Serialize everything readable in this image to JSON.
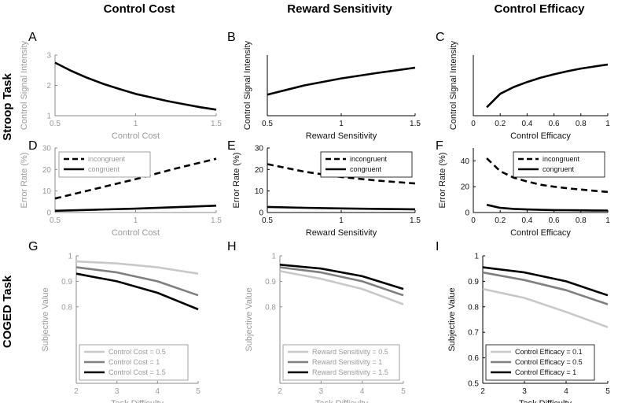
{
  "column_titles": [
    "Control Cost",
    "Reward Sensitivity",
    "Control Efficacy"
  ],
  "row_titles": [
    "Stroop Task",
    "COGED Task"
  ],
  "chart_data": [
    {
      "panel": "A",
      "type": "line",
      "style": "gray",
      "xlabel": "Control Cost",
      "ylabel": "Control Signal Intensity",
      "xlim": [
        0.5,
        1.5
      ],
      "ylim": [
        1,
        3
      ],
      "xticks": [
        "0.5",
        "1",
        "1.5"
      ],
      "xtick_values": [
        0.5,
        1,
        1.5
      ],
      "yticks": [
        "1",
        "2",
        "3"
      ],
      "ytick_values": [
        1,
        2,
        3
      ],
      "series": [
        {
          "name": "",
          "color": "#000000",
          "dash": false,
          "x": [
            0.5,
            0.6,
            0.7,
            0.8,
            0.9,
            1.0,
            1.1,
            1.2,
            1.3,
            1.4,
            1.5
          ],
          "y": [
            2.75,
            2.48,
            2.25,
            2.05,
            1.88,
            1.72,
            1.6,
            1.48,
            1.38,
            1.28,
            1.2
          ]
        }
      ]
    },
    {
      "panel": "B",
      "type": "line",
      "style": "dark",
      "xlabel": "Reward Sensitivity",
      "ylabel": "Control Signal Intensity",
      "xlim": [
        0.5,
        1.5
      ],
      "ylim": [
        0.9,
        2.2
      ],
      "xticks": [
        "0.5",
        "1",
        "1.5"
      ],
      "xtick_values": [
        0.5,
        1,
        1.5
      ],
      "yticks": [],
      "ytick_values": [],
      "series": [
        {
          "name": "",
          "color": "#000000",
          "dash": false,
          "x": [
            0.5,
            0.75,
            1.0,
            1.25,
            1.5
          ],
          "y": [
            1.35,
            1.55,
            1.7,
            1.82,
            1.93
          ]
        }
      ]
    },
    {
      "panel": "C",
      "type": "line",
      "style": "dark",
      "xlabel": "Control Efficacy",
      "ylabel": "Control Signal Intensity",
      "xlim": [
        0,
        1
      ],
      "ylim": [
        0.2,
        2.0
      ],
      "xticks": [
        "0",
        "0.2",
        "0.4",
        "0.6",
        "0.8",
        "1"
      ],
      "xtick_values": [
        0,
        0.2,
        0.4,
        0.6,
        0.8,
        1
      ],
      "yticks": [],
      "ytick_values": [],
      "series": [
        {
          "name": "",
          "color": "#000000",
          "dash": false,
          "x": [
            0.1,
            0.2,
            0.3,
            0.4,
            0.5,
            0.6,
            0.7,
            0.8,
            0.9,
            1.0
          ],
          "y": [
            0.45,
            0.85,
            1.05,
            1.2,
            1.33,
            1.43,
            1.52,
            1.6,
            1.66,
            1.72
          ]
        }
      ]
    },
    {
      "panel": "D",
      "type": "line",
      "style": "gray",
      "xlabel": "Control Cost",
      "ylabel": "Error Rate (%)",
      "xlim": [
        0.5,
        1.5
      ],
      "ylim": [
        0,
        30
      ],
      "xticks": [
        "0.5",
        "1",
        "1.5"
      ],
      "xtick_values": [
        0.5,
        1,
        1.5
      ],
      "yticks": [
        "0",
        "10",
        "20",
        "30"
      ],
      "ytick_values": [
        0,
        10,
        20,
        30
      ],
      "legend": "top-left",
      "series": [
        {
          "name": "incongruent",
          "color": "#000000",
          "dash": true,
          "x": [
            0.5,
            0.75,
            1.0,
            1.25,
            1.5
          ],
          "y": [
            6.5,
            11,
            15.5,
            20.5,
            25
          ]
        },
        {
          "name": "congruent",
          "color": "#000000",
          "dash": false,
          "x": [
            0.5,
            0.75,
            1.0,
            1.25,
            1.5
          ],
          "y": [
            0.8,
            1.3,
            1.8,
            2.5,
            3.2
          ]
        }
      ]
    },
    {
      "panel": "E",
      "type": "line",
      "style": "dark",
      "xlabel": "Reward Sensitivity",
      "ylabel": "Error Rate (%)",
      "xlim": [
        0.5,
        1.5
      ],
      "ylim": [
        0,
        30
      ],
      "xticks": [
        "0.5",
        "1",
        "1.5"
      ],
      "xtick_values": [
        0.5,
        1,
        1.5
      ],
      "yticks": [
        "0",
        "10",
        "20",
        "30"
      ],
      "ytick_values": [
        0,
        10,
        20,
        30
      ],
      "legend": "top-right",
      "series": [
        {
          "name": "incongruent",
          "color": "#000000",
          "dash": true,
          "x": [
            0.5,
            0.75,
            1.0,
            1.25,
            1.5
          ],
          "y": [
            22.5,
            19,
            16.5,
            14.8,
            13.5
          ]
        },
        {
          "name": "congruent",
          "color": "#000000",
          "dash": false,
          "x": [
            0.5,
            0.75,
            1.0,
            1.25,
            1.5
          ],
          "y": [
            2.6,
            2.2,
            1.9,
            1.7,
            1.5
          ]
        }
      ]
    },
    {
      "panel": "F",
      "type": "line",
      "style": "dark",
      "xlabel": "Control Efficacy",
      "ylabel": "Error Rate (%)",
      "xlim": [
        0,
        1
      ],
      "ylim": [
        0,
        50
      ],
      "xticks": [
        "0",
        "0.2",
        "0.4",
        "0.6",
        "0.8",
        "1"
      ],
      "xtick_values": [
        0,
        0.2,
        0.4,
        0.6,
        0.8,
        1
      ],
      "yticks": [
        "0",
        "20",
        "40"
      ],
      "ytick_values": [
        0,
        20,
        40
      ],
      "legend": "top-right",
      "series": [
        {
          "name": "incongruent",
          "color": "#000000",
          "dash": true,
          "x": [
            0.1,
            0.2,
            0.3,
            0.4,
            0.5,
            0.6,
            0.7,
            0.8,
            0.9,
            1.0
          ],
          "y": [
            42,
            32,
            27,
            24,
            21.5,
            20,
            18.8,
            17.8,
            16.8,
            16
          ]
        },
        {
          "name": "congruent",
          "color": "#000000",
          "dash": false,
          "x": [
            0.1,
            0.2,
            0.3,
            0.4,
            0.5,
            0.6,
            0.7,
            0.8,
            0.9,
            1.0
          ],
          "y": [
            6,
            3.6,
            2.8,
            2.4,
            2.1,
            1.9,
            1.8,
            1.7,
            1.6,
            1.5
          ]
        }
      ]
    },
    {
      "panel": "G",
      "type": "line",
      "style": "gray",
      "xlabel": "Task Difficulty",
      "ylabel": "Subjective Value",
      "xlim": [
        2,
        5
      ],
      "ylim": [
        0.5,
        1
      ],
      "xticks": [
        "2",
        "3",
        "4",
        "5"
      ],
      "xtick_values": [
        2,
        3,
        4,
        5
      ],
      "yticks": [
        "0.8",
        "0.9",
        "1"
      ],
      "ytick_values": [
        0.8,
        0.9,
        1
      ],
      "legend": "bottom-left",
      "series": [
        {
          "name": "Control Cost = 0.5",
          "color": "#c8c8c8",
          "dash": false,
          "x": [
            2,
            3,
            4,
            5
          ],
          "y": [
            0.978,
            0.97,
            0.955,
            0.93
          ]
        },
        {
          "name": "Control Cost = 1",
          "color": "#7f7f7f",
          "dash": false,
          "x": [
            2,
            3,
            4,
            5
          ],
          "y": [
            0.955,
            0.935,
            0.9,
            0.845
          ]
        },
        {
          "name": "Control Cost = 1.5",
          "color": "#000000",
          "dash": false,
          "x": [
            2,
            3,
            4,
            5
          ],
          "y": [
            0.93,
            0.9,
            0.855,
            0.79
          ]
        }
      ]
    },
    {
      "panel": "H",
      "type": "line",
      "style": "gray",
      "xlabel": "Task Difficulty",
      "ylabel": "Subjective Value",
      "xlim": [
        2,
        5
      ],
      "ylim": [
        0.5,
        1
      ],
      "xticks": [
        "2",
        "3",
        "4",
        "5"
      ],
      "xtick_values": [
        2,
        3,
        4,
        5
      ],
      "yticks": [
        "0.8",
        "0.9",
        "1"
      ],
      "ytick_values": [
        0.8,
        0.9,
        1
      ],
      "legend": "bottom-left",
      "series": [
        {
          "name": "Reward Sensitivity = 0.5",
          "color": "#c8c8c8",
          "dash": false,
          "x": [
            2,
            3,
            4,
            5
          ],
          "y": [
            0.94,
            0.91,
            0.87,
            0.81
          ]
        },
        {
          "name": "Reward Sensitivity = 1",
          "color": "#7f7f7f",
          "dash": false,
          "x": [
            2,
            3,
            4,
            5
          ],
          "y": [
            0.955,
            0.935,
            0.9,
            0.845
          ]
        },
        {
          "name": "Reward Sensitivity = 1.5",
          "color": "#000000",
          "dash": false,
          "x": [
            2,
            3,
            4,
            5
          ],
          "y": [
            0.965,
            0.95,
            0.92,
            0.87
          ]
        }
      ]
    },
    {
      "panel": "I",
      "type": "line",
      "style": "dark",
      "xlabel": "Task Difficulty",
      "ylabel": "Subjective Value",
      "xlim": [
        2,
        5
      ],
      "ylim": [
        0.5,
        1
      ],
      "xticks": [
        "2",
        "3",
        "4",
        "5"
      ],
      "xtick_values": [
        2,
        3,
        4,
        5
      ],
      "yticks": [
        "0.5",
        "0.6",
        "0.7",
        "0.8",
        "0.9",
        "1"
      ],
      "ytick_values": [
        0.5,
        0.6,
        0.7,
        0.8,
        0.9,
        1
      ],
      "legend": "bottom-left",
      "series": [
        {
          "name": "Control Efficacy = 0.1",
          "color": "#c8c8c8",
          "dash": false,
          "x": [
            2,
            3,
            4,
            5
          ],
          "y": [
            0.87,
            0.835,
            0.78,
            0.72
          ]
        },
        {
          "name": "Control Efficacy = 0.5",
          "color": "#7f7f7f",
          "dash": false,
          "x": [
            2,
            3,
            4,
            5
          ],
          "y": [
            0.935,
            0.905,
            0.865,
            0.81
          ]
        },
        {
          "name": "Control Efficacy = 1",
          "color": "#000000",
          "dash": false,
          "x": [
            2,
            3,
            4,
            5
          ],
          "y": [
            0.955,
            0.935,
            0.9,
            0.845
          ]
        }
      ]
    }
  ]
}
